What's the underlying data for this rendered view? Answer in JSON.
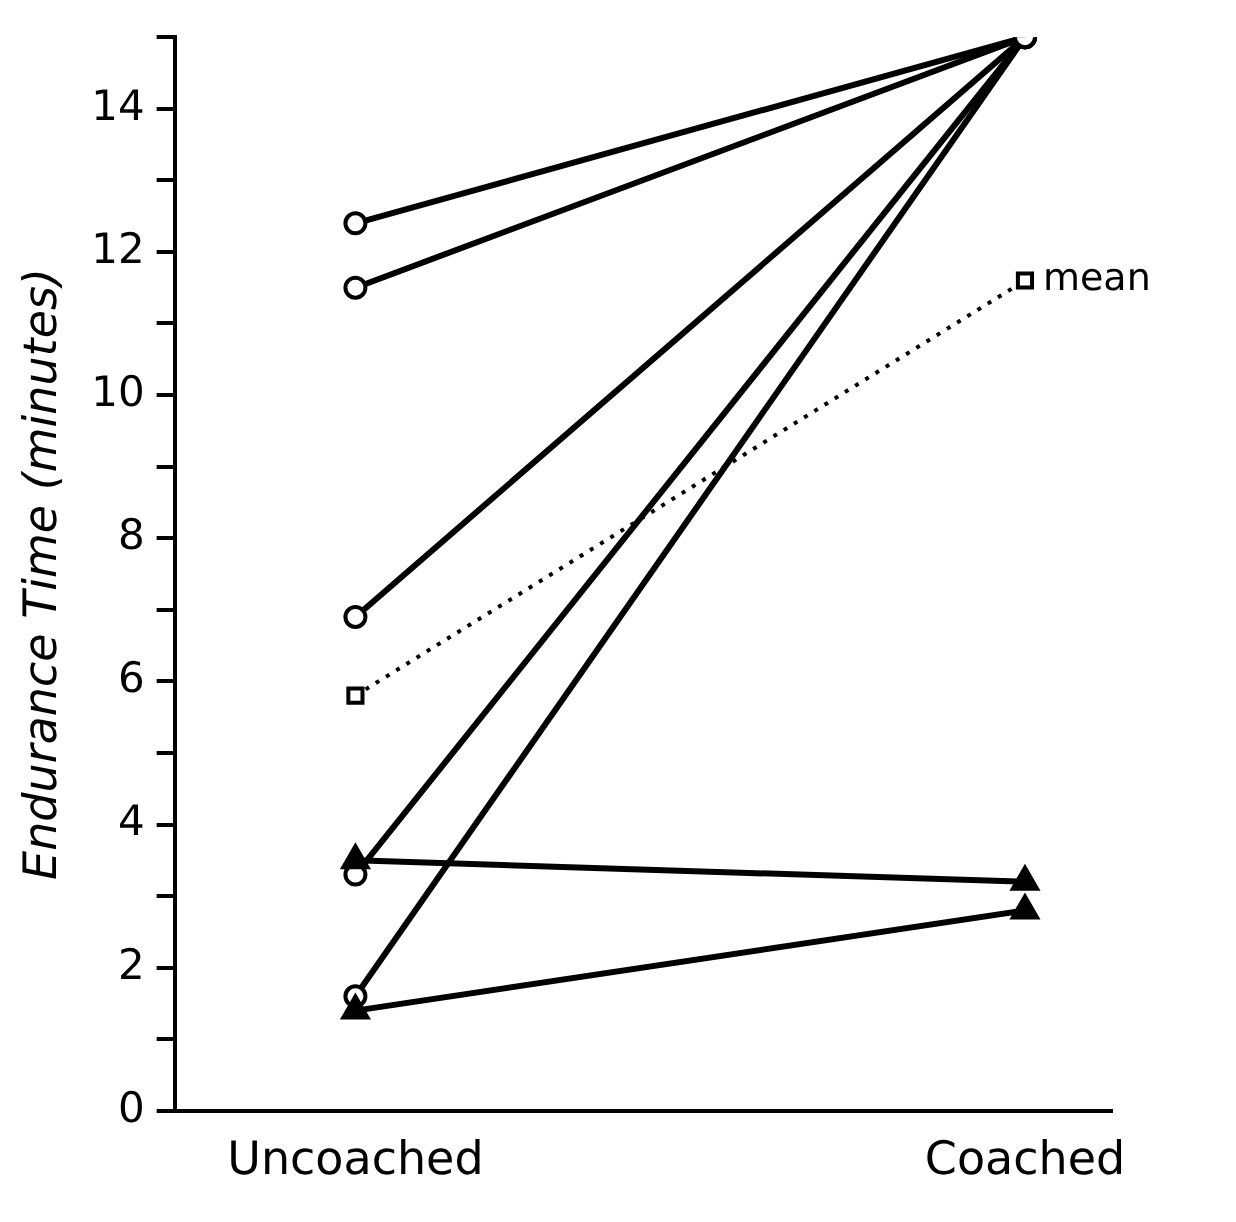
{
  "chart_data": {
    "type": "line",
    "ylabel": "Endurance Time (minutes)",
    "categories": [
      "Uncoached",
      "Coached"
    ],
    "ylim": [
      0,
      15
    ],
    "yticks": [
      0,
      {
        "value": 1,
        "label": null
      },
      2,
      {
        "value": 3,
        "label": null
      },
      4,
      {
        "value": 5,
        "label": null
      },
      6,
      {
        "value": 7,
        "label": null
      },
      8,
      {
        "value": 9,
        "label": null
      },
      10,
      {
        "value": 11,
        "label": null
      },
      12,
      {
        "value": 13,
        "label": null
      },
      14,
      {
        "value": 15,
        "label": null
      }
    ],
    "grid": false,
    "legend": false,
    "series": [
      {
        "color": "#000000",
        "marker": "circle",
        "values": [
          12.4,
          15
        ]
      },
      {
        "color": "#000000",
        "marker": "circle",
        "values": [
          11.5,
          15
        ]
      },
      {
        "color": "#000000",
        "marker": "circle",
        "values": [
          6.9,
          15
        ]
      },
      {
        "color": "#000000",
        "marker": "circle",
        "values": [
          3.3,
          15
        ]
      },
      {
        "color": "#000000",
        "marker": "circle",
        "values": [
          1.6,
          15
        ]
      },
      {
        "color": "#000000",
        "marker": "triangle",
        "values": [
          3.5,
          3.2
        ]
      },
      {
        "color": "#000000",
        "marker": "triangle",
        "values": [
          1.4,
          2.8
        ]
      },
      {
        "name": "mean",
        "color": "#000000",
        "marker": "square",
        "line_style": "dotted",
        "values": [
          5.8,
          11.6
        ]
      }
    ]
  }
}
